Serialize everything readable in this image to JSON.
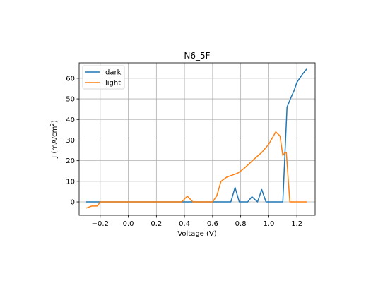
{
  "chart_data": {
    "type": "line",
    "title": "N6_5F",
    "xlabel": "Voltage (V)",
    "ylabel_main": "J (mA/cm",
    "ylabel_sup": "2",
    "ylabel_end": ")",
    "xlim": [
      -0.35,
      1.33
    ],
    "ylim": [
      -6.5,
      67.5
    ],
    "xticks": [
      -0.2,
      0.0,
      0.2,
      0.4,
      0.6,
      0.8,
      1.0,
      1.2
    ],
    "xtick_labels": [
      "−0.2",
      "0.0",
      "0.2",
      "0.4",
      "0.6",
      "0.8",
      "1.0",
      "1.2"
    ],
    "yticks": [
      0,
      10,
      20,
      30,
      40,
      50,
      60
    ],
    "ytick_labels": [
      "0",
      "10",
      "20",
      "30",
      "40",
      "50",
      "60"
    ],
    "grid": true,
    "legend_position": "upper-left",
    "series": [
      {
        "name": "dark",
        "color": "#1f77b4",
        "x": [
          -0.3,
          -0.25,
          -0.2,
          -0.1,
          0.0,
          0.2,
          0.4,
          0.5,
          0.6,
          0.7,
          0.73,
          0.76,
          0.79,
          0.85,
          0.88,
          0.92,
          0.95,
          0.98,
          1.05,
          1.1,
          1.13,
          1.16,
          1.18,
          1.2,
          1.24,
          1.27
        ],
        "y": [
          0,
          0,
          0,
          0,
          0,
          0,
          0,
          0,
          0,
          0,
          0,
          7,
          0,
          0,
          2.5,
          0,
          6,
          0,
          0,
          0,
          46,
          51,
          54,
          58,
          62,
          64.5
        ]
      },
      {
        "name": "light",
        "color": "#ff7f0e",
        "x": [
          -0.3,
          -0.26,
          -0.22,
          -0.2,
          -0.18,
          -0.1,
          0.0,
          0.2,
          0.38,
          0.42,
          0.46,
          0.6,
          0.63,
          0.66,
          0.7,
          0.78,
          0.82,
          0.86,
          0.9,
          0.95,
          1.0,
          1.05,
          1.08,
          1.1,
          1.115,
          1.125,
          1.15,
          1.2,
          1.24,
          1.27
        ],
        "y": [
          -3,
          -2,
          -2,
          0,
          0,
          0,
          0,
          0,
          0,
          2.8,
          0,
          0,
          3,
          10,
          12,
          14,
          16,
          18.5,
          21,
          24,
          28,
          34,
          32,
          22.5,
          24,
          24,
          0,
          0,
          0,
          0
        ]
      }
    ]
  }
}
